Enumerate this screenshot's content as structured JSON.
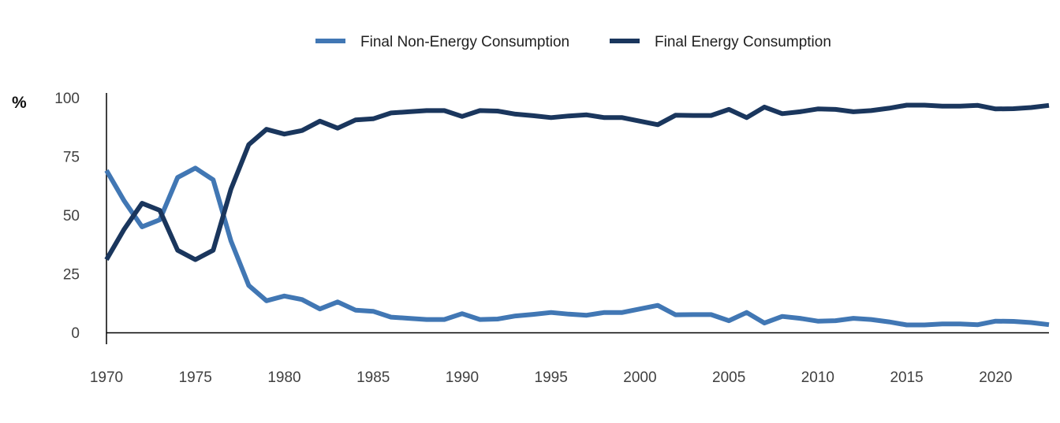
{
  "chart_data": {
    "type": "line",
    "ylabel": "%",
    "ylim": [
      0,
      100
    ],
    "yticks": [
      0,
      25,
      50,
      75,
      100
    ],
    "xlim": [
      1970,
      2023
    ],
    "xticks": [
      1970,
      1975,
      1980,
      1985,
      1990,
      1995,
      2000,
      2005,
      2010,
      2015,
      2020
    ],
    "grid": false,
    "legend_position": "top-center",
    "x": [
      1970,
      1971,
      1972,
      1973,
      1974,
      1975,
      1976,
      1977,
      1978,
      1979,
      1980,
      1981,
      1982,
      1983,
      1984,
      1985,
      1986,
      1987,
      1988,
      1989,
      1990,
      1991,
      1992,
      1993,
      1994,
      1995,
      1996,
      1997,
      1998,
      1999,
      2000,
      2001,
      2002,
      2003,
      2004,
      2005,
      2006,
      2007,
      2008,
      2009,
      2010,
      2011,
      2012,
      2013,
      2014,
      2015,
      2016,
      2017,
      2018,
      2019,
      2020,
      2021,
      2022,
      2023
    ],
    "series": [
      {
        "name": "Final Non-Energy Consumption",
        "color": "#4177b4",
        "values": [
          69,
          56,
          45,
          48,
          66,
          70,
          65,
          39,
          20,
          13.5,
          15.5,
          14,
          10,
          13,
          9.5,
          9,
          6.5,
          6,
          5.5,
          5.5,
          8,
          5.5,
          5.7,
          7,
          7.7,
          8.5,
          7.8,
          7.3,
          8.5,
          8.5,
          10,
          11.5,
          7.5,
          7.6,
          7.6,
          5,
          8.5,
          4,
          6.8,
          6,
          4.8,
          5,
          6,
          5.5,
          4.5,
          3.2,
          3.2,
          3.6,
          3.6,
          3.3,
          4.8,
          4.7,
          4.2,
          3.3
        ]
      },
      {
        "name": "Final Energy Consumption",
        "color": "#1a365d",
        "values": [
          31,
          44,
          55,
          52,
          35,
          31,
          35,
          61,
          80,
          86.5,
          84.5,
          86,
          90,
          87,
          90.5,
          91,
          93.5,
          94,
          94.5,
          94.5,
          92,
          94.5,
          94.3,
          93,
          92.3,
          91.5,
          92.2,
          92.7,
          91.5,
          91.5,
          90,
          88.5,
          92.5,
          92.4,
          92.4,
          95,
          91.5,
          96,
          93.2,
          94,
          95.2,
          95,
          94,
          94.5,
          95.5,
          96.8,
          96.8,
          96.4,
          96.4,
          96.7,
          95.2,
          95.3,
          95.8,
          96.7
        ]
      }
    ]
  }
}
